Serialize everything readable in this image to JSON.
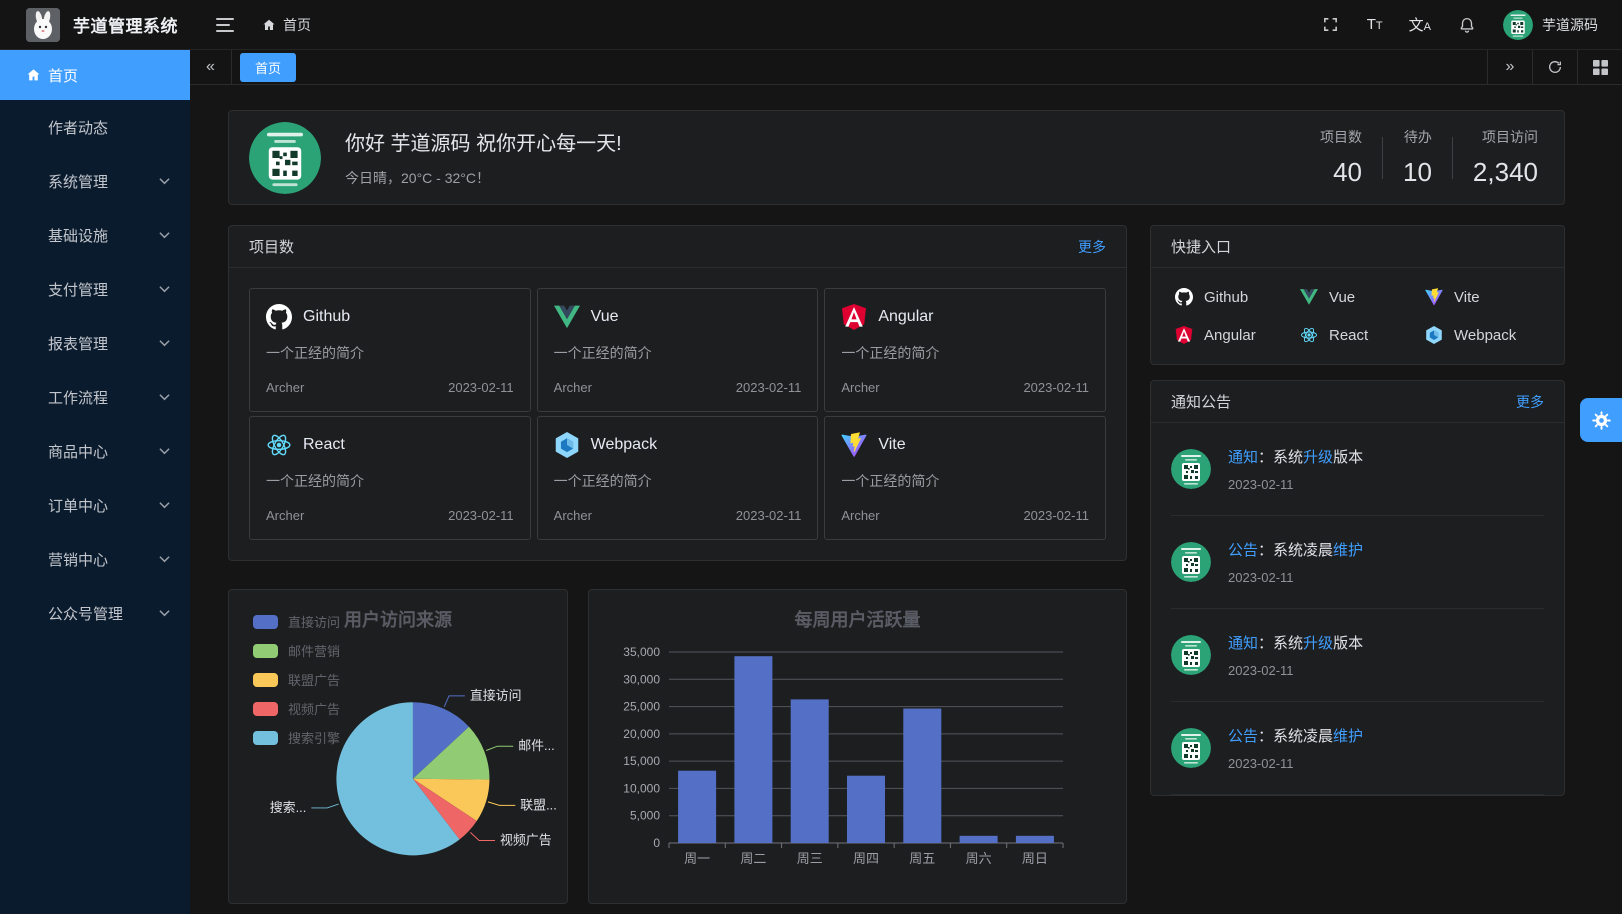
{
  "app": {
    "title": "芋道管理系统",
    "breadcrumb": "首页",
    "username": "芋道源码"
  },
  "navbar": {
    "font_icon_big": "T",
    "font_icon_small": "T",
    "translate_icon_big": "文",
    "translate_icon_small": "A"
  },
  "sidebar": {
    "items": [
      {
        "label": "首页",
        "icon": "home",
        "active": true,
        "expandable": false
      },
      {
        "label": "作者动态",
        "active": false,
        "expandable": false
      },
      {
        "label": "系统管理",
        "active": false,
        "expandable": true
      },
      {
        "label": "基础设施",
        "active": false,
        "expandable": true
      },
      {
        "label": "支付管理",
        "active": false,
        "expandable": true
      },
      {
        "label": "报表管理",
        "active": false,
        "expandable": true
      },
      {
        "label": "工作流程",
        "active": false,
        "expandable": true
      },
      {
        "label": "商品中心",
        "active": false,
        "expandable": true
      },
      {
        "label": "订单中心",
        "active": false,
        "expandable": true
      },
      {
        "label": "营销中心",
        "active": false,
        "expandable": true
      },
      {
        "label": "公众号管理",
        "active": false,
        "expandable": true
      }
    ]
  },
  "tabbar": {
    "collapse_icon": "«",
    "expand_icon": "»",
    "tabs": [
      {
        "label": "首页",
        "active": true
      }
    ]
  },
  "greeting": {
    "title": "你好 芋道源码 祝你开心每一天!",
    "subtitle": "今日晴，20°C - 32°C！",
    "stats": [
      {
        "label": "项目数",
        "value": "40"
      },
      {
        "label": "待办",
        "value": "10"
      },
      {
        "label": "项目访问",
        "value": "2,340"
      }
    ]
  },
  "projects": {
    "title": "项目数",
    "more_label": "更多",
    "items": [
      {
        "name": "Github",
        "icon": "github",
        "desc": "一个正经的简介",
        "author": "Archer",
        "date": "2023-02-11"
      },
      {
        "name": "Vue",
        "icon": "vue",
        "desc": "一个正经的简介",
        "author": "Archer",
        "date": "2023-02-11"
      },
      {
        "name": "Angular",
        "icon": "angular",
        "desc": "一个正经的简介",
        "author": "Archer",
        "date": "2023-02-11"
      },
      {
        "name": "React",
        "icon": "react",
        "desc": "一个正经的简介",
        "author": "Archer",
        "date": "2023-02-11"
      },
      {
        "name": "Webpack",
        "icon": "webpack",
        "desc": "一个正经的简介",
        "author": "Archer",
        "date": "2023-02-11"
      },
      {
        "name": "Vite",
        "icon": "vite",
        "desc": "一个正经的简介",
        "author": "Archer",
        "date": "2023-02-11"
      }
    ]
  },
  "shortcuts": {
    "title": "快捷入口",
    "items": [
      {
        "label": "Github",
        "icon": "github"
      },
      {
        "label": "Vue",
        "icon": "vue"
      },
      {
        "label": "Vite",
        "icon": "vite"
      },
      {
        "label": "Angular",
        "icon": "angular"
      },
      {
        "label": "React",
        "icon": "react"
      },
      {
        "label": "Webpack",
        "icon": "webpack"
      }
    ]
  },
  "notices": {
    "title": "通知公告",
    "more_label": "更多",
    "items": [
      {
        "tag": "通知",
        "colon": "：",
        "pre": "系统",
        "link": "升级",
        "post": "版本",
        "date": "2023-02-11"
      },
      {
        "tag": "公告",
        "colon": "：",
        "pre": "系统凌晨",
        "link": "维护",
        "post": "",
        "date": "2023-02-11"
      },
      {
        "tag": "通知",
        "colon": "：",
        "pre": "系统",
        "link": "升级",
        "post": "版本",
        "date": "2023-02-11"
      },
      {
        "tag": "公告",
        "colon": "：",
        "pre": "系统凌晨",
        "link": "维护",
        "post": "",
        "date": "2023-02-11"
      }
    ]
  },
  "chart_data": [
    {
      "type": "pie",
      "title": "用户访问来源",
      "legend_position": "top-left-vertical",
      "labels": [
        "直接访问",
        "邮件营销",
        "联盟广告",
        "视频广告",
        "搜索引擎"
      ],
      "display_labels": [
        "直接访问",
        "邮件...",
        "联盟...",
        "视频广告",
        "搜索..."
      ],
      "values": [
        335,
        310,
        234,
        135,
        1548
      ],
      "colors": [
        "#5470c6",
        "#91cc75",
        "#fac858",
        "#ee6666",
        "#73c0de"
      ]
    },
    {
      "type": "bar",
      "title": "每周用户活跃量",
      "categories": [
        "周一",
        "周二",
        "周三",
        "周四",
        "周五",
        "周六",
        "周日"
      ],
      "values": [
        13253,
        34235,
        26321,
        12340,
        24643,
        1322,
        1324
      ],
      "ylim": [
        0,
        35000
      ],
      "ytick_step": 5000,
      "bar_color": "#5470c6",
      "grid": true
    }
  ]
}
